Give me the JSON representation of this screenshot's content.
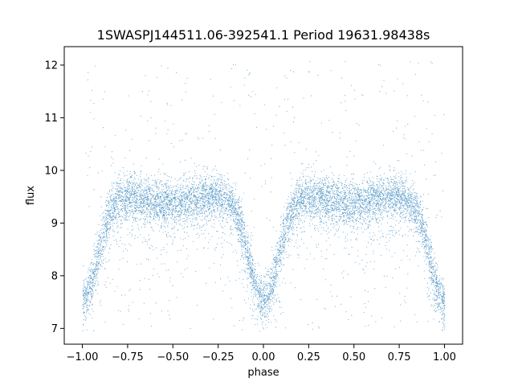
{
  "chart_data": {
    "type": "scatter",
    "title": "1SWASPJ144511.06-392541.1 Period 19631.98438s",
    "xlabel": "phase",
    "ylabel": "flux",
    "xlim": [
      -1.1,
      1.1
    ],
    "ylim": [
      6.7,
      12.35
    ],
    "x_ticks": [
      -1.0,
      -0.75,
      -0.5,
      -0.25,
      0.0,
      0.25,
      0.5,
      0.75,
      1.0
    ],
    "x_tick_labels": [
      "−1.00",
      "−0.75",
      "−0.50",
      "−0.25",
      "0.00",
      "0.25",
      "0.50",
      "0.75",
      "1.00"
    ],
    "y_ticks": [
      7,
      8,
      9,
      10,
      11,
      12
    ],
    "y_tick_labels": [
      "7",
      "8",
      "9",
      "10",
      "11",
      "12"
    ],
    "grid": false,
    "marker_color": "#1f77b4",
    "series": [
      {
        "description_points": "folded light curve: dense band around flux 9.55 with eclipses near phase 0 and ±1",
        "baseline_flux": 9.55,
        "band_halfwidth": 0.35,
        "primary_eclipse": {
          "phase": 0.0,
          "min_flux": 7.55,
          "halfwidth": 0.12
        },
        "eclipse_repeat_phases": [
          -1.0,
          0.0,
          1.0
        ],
        "secondary_dip": {
          "phase": 0.5,
          "depth": 0.15
        },
        "phase_range": [
          -1.0,
          1.0
        ],
        "flux_range": [
          6.95,
          12.1
        ],
        "outlier_fraction": 0.06
      }
    ]
  }
}
